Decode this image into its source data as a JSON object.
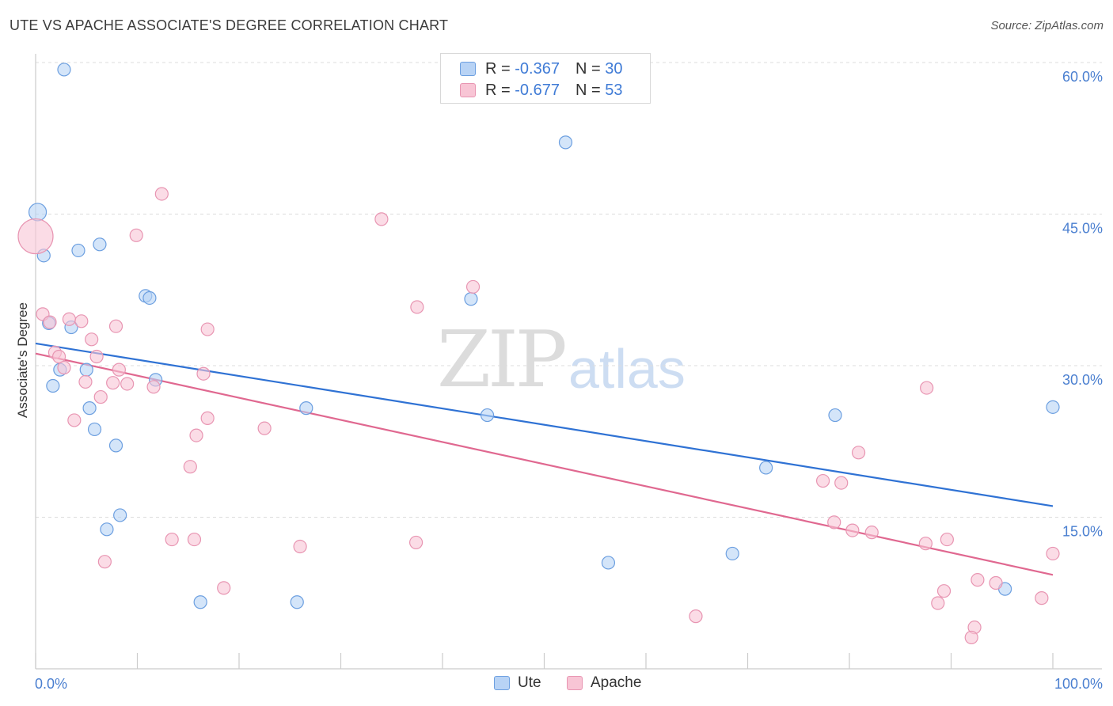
{
  "header": {
    "title": "UTE VS APACHE ASSOCIATE'S DEGREE CORRELATION CHART",
    "source": "Source: ZipAtlas.com"
  },
  "watermark": {
    "zip": "ZIP",
    "atlas": "atlas"
  },
  "legend": {
    "ute": {
      "r_label": "R = ",
      "r_value": "-0.367",
      "n_label": "N = ",
      "n_value": "30"
    },
    "apache": {
      "r_label": "R = ",
      "r_value": "-0.677",
      "n_label": "N = ",
      "n_value": "53"
    }
  },
  "bottom_legend": {
    "ute": "Ute",
    "apache": "Apache"
  },
  "colors": {
    "ute_fill": "#b8d3f5",
    "ute_stroke": "#6c9fe0",
    "ute_line": "#2f72d4",
    "apache_fill": "#f8c5d5",
    "apache_stroke": "#e895b2",
    "apache_line": "#e06890",
    "grid": "#dddddd",
    "axis_text": "#4a7fd0"
  },
  "chart_data": {
    "type": "scatter",
    "title": "UTE VS APACHE ASSOCIATE'S DEGREE CORRELATION CHART",
    "xlabel": "",
    "ylabel": "Associate's Degree",
    "xlim": [
      0,
      100
    ],
    "ylim": [
      0,
      60
    ],
    "x_tick_labels": [
      "0.0%",
      "100.0%"
    ],
    "y_ticks": [
      15,
      30,
      45,
      60
    ],
    "y_tick_labels": [
      "15.0%",
      "30.0%",
      "45.0%",
      "60.0%"
    ],
    "grid": true,
    "legend_position": "top-center",
    "series": [
      {
        "name": "Ute",
        "points": [
          [
            2.8,
            59.3
          ],
          [
            52.1,
            52.1
          ],
          [
            0.2,
            45.2
          ],
          [
            0.8,
            40.9
          ],
          [
            4.2,
            41.4
          ],
          [
            6.3,
            42.0
          ],
          [
            10.8,
            36.9
          ],
          [
            11.2,
            36.7
          ],
          [
            42.8,
            36.6
          ],
          [
            1.3,
            34.2
          ],
          [
            3.5,
            33.8
          ],
          [
            2.4,
            29.6
          ],
          [
            5.0,
            29.6
          ],
          [
            11.8,
            28.6
          ],
          [
            1.7,
            28.0
          ],
          [
            5.3,
            25.8
          ],
          [
            26.6,
            25.8
          ],
          [
            44.4,
            25.1
          ],
          [
            78.6,
            25.1
          ],
          [
            100.0,
            25.9
          ],
          [
            5.8,
            23.7
          ],
          [
            7.9,
            22.1
          ],
          [
            71.8,
            19.9
          ],
          [
            8.3,
            15.2
          ],
          [
            7.0,
            13.8
          ],
          [
            68.5,
            11.4
          ],
          [
            56.3,
            10.5
          ],
          [
            16.2,
            6.6
          ],
          [
            25.7,
            6.6
          ],
          [
            95.3,
            7.9
          ]
        ],
        "trend": [
          [
            0,
            32.2
          ],
          [
            100,
            16.1
          ]
        ]
      },
      {
        "name": "Apache",
        "points": [
          [
            0.0,
            42.8
          ],
          [
            12.4,
            47.0
          ],
          [
            34.0,
            44.5
          ],
          [
            9.9,
            42.9
          ],
          [
            43.0,
            37.8
          ],
          [
            37.5,
            35.8
          ],
          [
            0.7,
            35.1
          ],
          [
            1.4,
            34.3
          ],
          [
            3.3,
            34.6
          ],
          [
            4.5,
            34.4
          ],
          [
            7.9,
            33.9
          ],
          [
            16.9,
            33.6
          ],
          [
            5.5,
            32.6
          ],
          [
            1.9,
            31.3
          ],
          [
            2.3,
            30.9
          ],
          [
            6.0,
            30.9
          ],
          [
            2.8,
            29.8
          ],
          [
            8.2,
            29.6
          ],
          [
            16.5,
            29.2
          ],
          [
            4.9,
            28.4
          ],
          [
            7.6,
            28.3
          ],
          [
            9.0,
            28.2
          ],
          [
            11.6,
            27.9
          ],
          [
            6.4,
            26.9
          ],
          [
            3.8,
            24.6
          ],
          [
            16.9,
            24.8
          ],
          [
            22.5,
            23.8
          ],
          [
            15.8,
            23.1
          ],
          [
            15.2,
            20.0
          ],
          [
            87.6,
            27.8
          ],
          [
            80.9,
            21.4
          ],
          [
            77.4,
            18.6
          ],
          [
            79.2,
            18.4
          ],
          [
            78.5,
            14.5
          ],
          [
            80.3,
            13.7
          ],
          [
            82.2,
            13.5
          ],
          [
            13.4,
            12.8
          ],
          [
            15.6,
            12.8
          ],
          [
            26.0,
            12.1
          ],
          [
            37.4,
            12.5
          ],
          [
            87.5,
            12.4
          ],
          [
            89.6,
            12.8
          ],
          [
            100.0,
            11.4
          ],
          [
            6.8,
            10.6
          ],
          [
            18.5,
            8.0
          ],
          [
            92.6,
            8.8
          ],
          [
            94.4,
            8.5
          ],
          [
            89.3,
            7.7
          ],
          [
            88.7,
            6.5
          ],
          [
            98.9,
            7.0
          ],
          [
            64.9,
            5.2
          ],
          [
            92.3,
            4.1
          ],
          [
            92.0,
            3.1
          ]
        ],
        "trend": [
          [
            0,
            31.2
          ],
          [
            100,
            9.3
          ]
        ]
      }
    ]
  }
}
